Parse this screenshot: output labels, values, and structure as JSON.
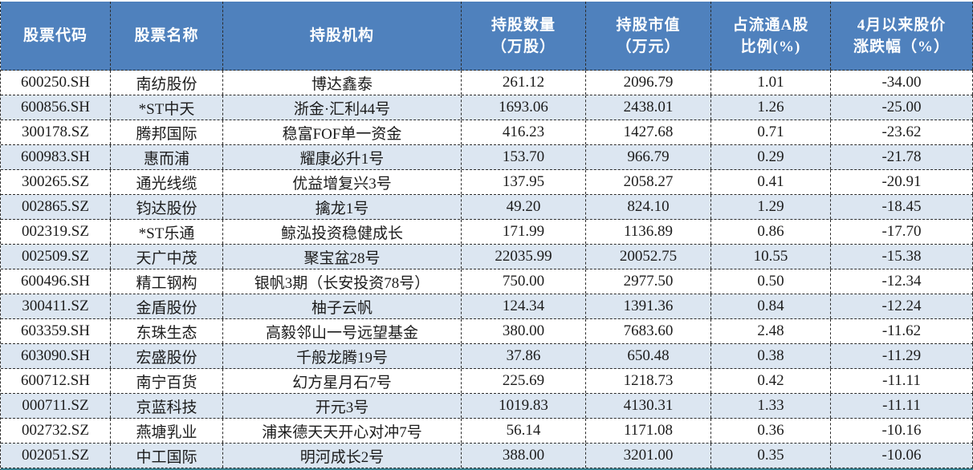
{
  "table": {
    "header_bg": "#4F81BD",
    "header_text_color": "#FFFFFF",
    "row_bg": "#FFFFFF",
    "row_alt_bg": "#DCE6F1",
    "border_color": "#2B2B2B",
    "bottom_strip_color": "#35808F",
    "columns": [
      {
        "key": "stock-code",
        "line1": "股票代码",
        "line2": ""
      },
      {
        "key": "stock-name",
        "line1": "股票名称",
        "line2": ""
      },
      {
        "key": "institution",
        "line1": "持股机构",
        "line2": ""
      },
      {
        "key": "shares-held",
        "line1": "持股数量",
        "line2": "（万股）"
      },
      {
        "key": "market-value",
        "line1": "持股市值",
        "line2": "（万元）"
      },
      {
        "key": "float-ratio",
        "line1": "占流通A股",
        "line2": "比例(%)"
      },
      {
        "key": "price-change",
        "line1": "4月以来股价",
        "line2": "涨跌幅（%）"
      }
    ]
  },
  "chart_data": {
    "type": "table",
    "columns": [
      "股票代码",
      "股票名称",
      "持股机构",
      "持股数量（万股）",
      "持股市值（万元）",
      "占流通A股比例(%)",
      "4月以来股价涨跌幅（%）"
    ],
    "rows": [
      [
        "600250.SH",
        "南纺股份",
        "博达鑫泰",
        "261.12",
        "2096.79",
        "1.01",
        "-34.00"
      ],
      [
        "600856.SH",
        "*ST中天",
        "浙金·汇利44号",
        "1693.06",
        "2438.01",
        "1.26",
        "-25.00"
      ],
      [
        "300178.SZ",
        "腾邦国际",
        "稳富FOF单一资金",
        "416.23",
        "1427.68",
        "0.71",
        "-23.62"
      ],
      [
        "600983.SH",
        "惠而浦",
        "耀康必升1号",
        "153.70",
        "966.79",
        "0.29",
        "-21.78"
      ],
      [
        "300265.SZ",
        "通光线缆",
        "优益增复兴3号",
        "137.95",
        "2058.27",
        "0.41",
        "-20.91"
      ],
      [
        "002865.SZ",
        "钧达股份",
        "擒龙1号",
        "49.20",
        "824.10",
        "1.29",
        "-18.45"
      ],
      [
        "002319.SZ",
        "*ST乐通",
        "鲸泓投资稳健成长",
        "171.99",
        "1136.89",
        "0.86",
        "-17.70"
      ],
      [
        "002509.SZ",
        "天广中茂",
        "聚宝盆28号",
        "22035.99",
        "20052.75",
        "10.55",
        "-15.38"
      ],
      [
        "600496.SH",
        "精工钢构",
        "银帆3期（长安投资78号）",
        "750.00",
        "2977.50",
        "0.50",
        "-12.34"
      ],
      [
        "300411.SZ",
        "金盾股份",
        "柚子云帆",
        "124.34",
        "1391.36",
        "0.84",
        "-12.24"
      ],
      [
        "603359.SH",
        "东珠生态",
        "高毅邻山一号远望基金",
        "380.00",
        "7683.60",
        "2.48",
        "-11.62"
      ],
      [
        "603090.SH",
        "宏盛股份",
        "千般龙腾19号",
        "37.86",
        "650.48",
        "0.38",
        "-11.29"
      ],
      [
        "600712.SH",
        "南宁百货",
        "幻方星月石7号",
        "225.69",
        "1218.73",
        "0.42",
        "-11.11"
      ],
      [
        "000711.SZ",
        "京蓝科技",
        "开元3号",
        "1019.83",
        "4130.31",
        "1.33",
        "-11.11"
      ],
      [
        "002732.SZ",
        "燕塘乳业",
        "浦来德天天开心对冲7号",
        "56.14",
        "1171.08",
        "0.36",
        "-10.16"
      ],
      [
        "002051.SZ",
        "中工国际",
        "明河成长2号",
        "388.00",
        "3201.00",
        "0.35",
        "-10.06"
      ]
    ]
  }
}
